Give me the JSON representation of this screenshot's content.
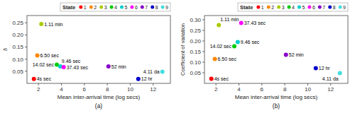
{
  "chart_data": [
    {
      "type": "scatter",
      "title": "(a)",
      "xlabel": "Mean inter-arrival time (log secs)",
      "ylabel": "δ",
      "xlim": [
        1.0,
        13.5
      ],
      "ylim": [
        0.0,
        0.28
      ],
      "xticks": [
        2,
        4,
        6,
        8,
        10,
        12
      ],
      "yticks": [
        0.05,
        {
          "value": 0.1,
          "label": "0.10"
        },
        0.15,
        {
          "value": 0.2,
          "label": "0.20"
        },
        0.25
      ],
      "legend": "upper right",
      "legend_title": "State",
      "series": [
        {
          "name": "1",
          "color": "#ff0000",
          "x": [
            1.6
          ],
          "values": [
            0.018
          ],
          "labels": [
            "4s sec"
          ]
        },
        {
          "name": "2",
          "color": "#ff8800",
          "x": [
            1.9
          ],
          "values": [
            0.115
          ],
          "labels": [
            "6.50 sec"
          ]
        },
        {
          "name": "3",
          "color": "#aacc00",
          "x": [
            2.25
          ],
          "values": [
            0.245
          ],
          "labels": [
            "1.11 min"
          ]
        },
        {
          "name": "4",
          "color": "#00cc00",
          "x": [
            3.6
          ],
          "values": [
            0.077
          ],
          "labels": [
            "14.02 sec"
          ]
        },
        {
          "name": "5",
          "color": "#00cccc",
          "x": [
            3.9
          ],
          "values": [
            0.07
          ],
          "labels": [
            "9.46 sec"
          ]
        },
        {
          "name": "6",
          "color": "#ff00ff",
          "x": [
            4.2
          ],
          "values": [
            0.067
          ],
          "labels": [
            "37.43 sec"
          ]
        },
        {
          "name": "7",
          "color": "#8800cc",
          "x": [
            8.1
          ],
          "values": [
            0.07
          ],
          "labels": [
            "52 min"
          ]
        },
        {
          "name": "8",
          "color": "#0000cc",
          "x": [
            10.7
          ],
          "values": [
            0.018
          ],
          "labels": [
            "12 hr"
          ]
        },
        {
          "name": "9",
          "color": "#44dddd",
          "x": [
            12.8
          ],
          "values": [
            0.048
          ],
          "labels": [
            "4.11 da"
          ]
        }
      ]
    },
    {
      "type": "scatter",
      "title": "(b)",
      "xlabel": "Mean inter-arrival time (log secs)",
      "ylabel": "Coefficient of variation",
      "xlim": [
        1.0,
        13.5
      ],
      "ylim": [
        0.0,
        0.32
      ],
      "xticks": [
        2,
        4,
        6,
        8,
        10,
        12
      ],
      "yticks": [
        0.05,
        {
          "value": 0.1,
          "label": "0.10"
        },
        0.15,
        {
          "value": 0.2,
          "label": "0.20"
        },
        0.25,
        {
          "value": 0.3,
          "label": "0.30"
        }
      ],
      "legend": "upper right",
      "legend_title": "State",
      "series": [
        {
          "name": "1",
          "color": "#ff0000",
          "x": [
            1.6
          ],
          "values": [
            0.022
          ],
          "labels": [
            "4s sec"
          ]
        },
        {
          "name": "2",
          "color": "#ff8800",
          "x": [
            1.9
          ],
          "values": [
            0.115
          ],
          "labels": [
            "6.50 sec"
          ]
        },
        {
          "name": "3",
          "color": "#aacc00",
          "x": [
            2.25
          ],
          "values": [
            0.275
          ],
          "labels": [
            "1.11 min"
          ]
        },
        {
          "name": "4",
          "color": "#00cc00",
          "x": [
            3.6
          ],
          "values": [
            0.175
          ],
          "labels": [
            "14.02 sec"
          ]
        },
        {
          "name": "5",
          "color": "#00cccc",
          "x": [
            3.9
          ],
          "values": [
            0.195
          ],
          "labels": [
            "9.46 sec"
          ]
        },
        {
          "name": "6",
          "color": "#ff00ff",
          "x": [
            4.2
          ],
          "values": [
            0.285
          ],
          "labels": [
            "37.43 sec"
          ]
        },
        {
          "name": "7",
          "color": "#8800cc",
          "x": [
            8.1
          ],
          "values": [
            0.135
          ],
          "labels": [
            "52 min"
          ]
        },
        {
          "name": "8",
          "color": "#0000cc",
          "x": [
            10.7
          ],
          "values": [
            0.072
          ],
          "labels": [
            "12 hr"
          ]
        },
        {
          "name": "9",
          "color": "#44dddd",
          "x": [
            12.8
          ],
          "values": [
            0.048
          ],
          "labels": [
            "4.11 da"
          ]
        }
      ]
    }
  ]
}
